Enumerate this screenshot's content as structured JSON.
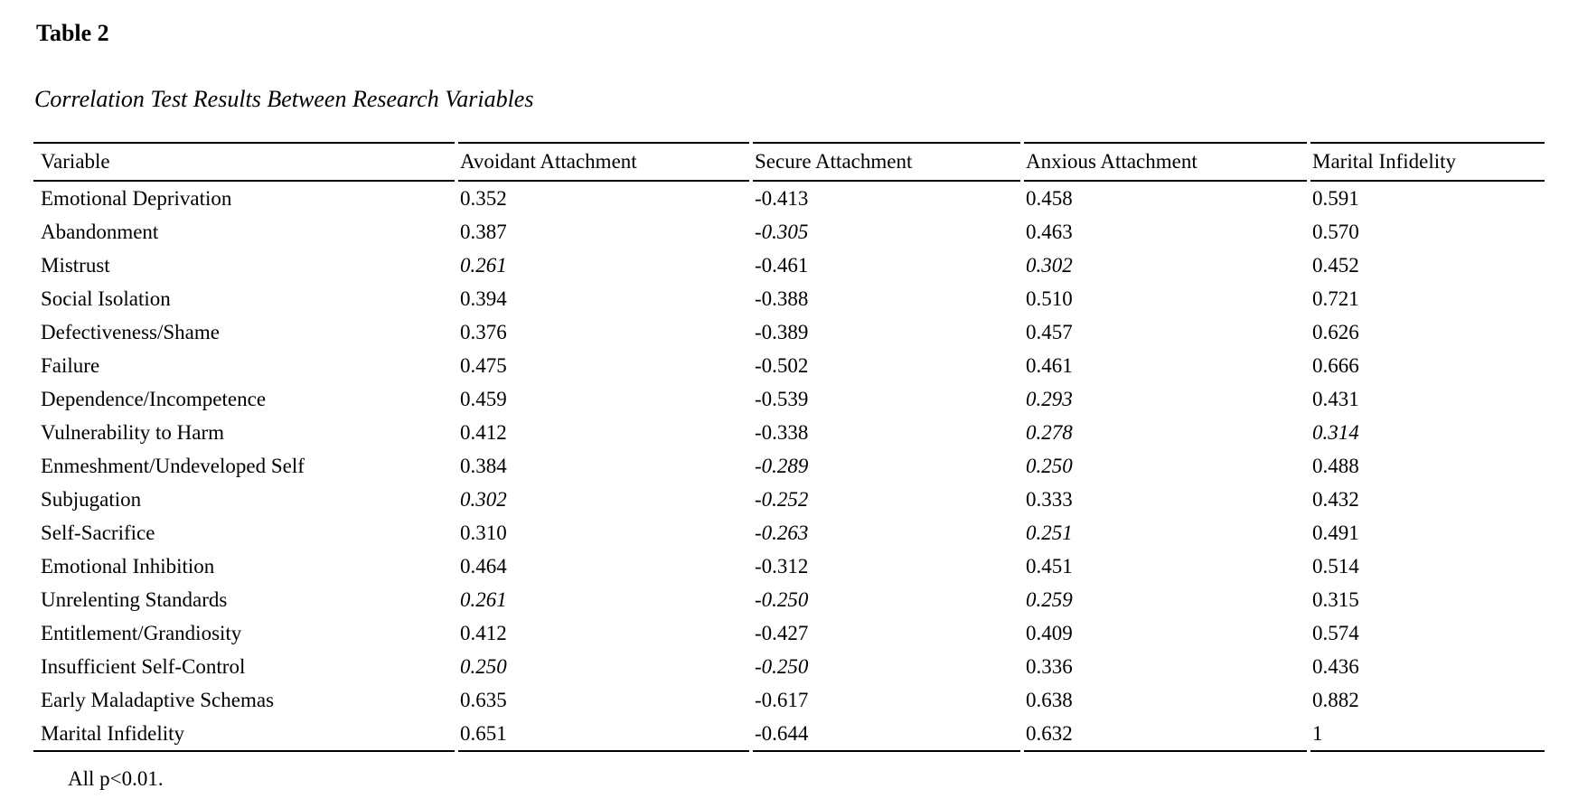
{
  "title": "Table 2",
  "caption": "Correlation Test Results Between Research Variables",
  "footnote": "All p<0.01.",
  "colors": {
    "text": "#000000",
    "background": "#ffffff",
    "rule": "#000000"
  },
  "table": {
    "columns": [
      "Variable",
      "Avoidant Attachment",
      "Secure Attachment",
      "Anxious Attachment",
      "Marital Infidelity"
    ],
    "rows": [
      {
        "variable": "Emotional Deprivation",
        "values": [
          "0.352",
          "-0.413",
          "0.458",
          "0.591"
        ],
        "italic": [
          false,
          false,
          false,
          false
        ]
      },
      {
        "variable": "Abandonment",
        "values": [
          "0.387",
          "-0.305",
          "0.463",
          "0.570"
        ],
        "italic": [
          false,
          true,
          false,
          false
        ]
      },
      {
        "variable": "Mistrust",
        "values": [
          "0.261",
          "-0.461",
          "0.302",
          "0.452"
        ],
        "italic": [
          true,
          false,
          true,
          false
        ]
      },
      {
        "variable": "Social Isolation",
        "values": [
          "0.394",
          "-0.388",
          "0.510",
          "0.721"
        ],
        "italic": [
          false,
          false,
          false,
          false
        ]
      },
      {
        "variable": "Defectiveness/Shame",
        "values": [
          "0.376",
          "-0.389",
          "0.457",
          "0.626"
        ],
        "italic": [
          false,
          false,
          false,
          false
        ]
      },
      {
        "variable": "Failure",
        "values": [
          "0.475",
          "-0.502",
          "0.461",
          "0.666"
        ],
        "italic": [
          false,
          false,
          false,
          false
        ]
      },
      {
        "variable": "Dependence/Incompetence",
        "values": [
          "0.459",
          "-0.539",
          "0.293",
          "0.431"
        ],
        "italic": [
          false,
          false,
          true,
          false
        ]
      },
      {
        "variable": "Vulnerability to Harm",
        "values": [
          "0.412",
          "-0.338",
          "0.278",
          "0.314"
        ],
        "italic": [
          false,
          false,
          true,
          true
        ]
      },
      {
        "variable": "Enmeshment/Undeveloped Self",
        "values": [
          "0.384",
          "-0.289",
          "0.250",
          "0.488"
        ],
        "italic": [
          false,
          true,
          true,
          false
        ]
      },
      {
        "variable": "Subjugation",
        "values": [
          "0.302",
          "-0.252",
          "0.333",
          "0.432"
        ],
        "italic": [
          true,
          true,
          false,
          false
        ]
      },
      {
        "variable": "Self-Sacrifice",
        "values": [
          "0.310",
          "-0.263",
          "0.251",
          "0.491"
        ],
        "italic": [
          false,
          true,
          true,
          false
        ]
      },
      {
        "variable": "Emotional Inhibition",
        "values": [
          "0.464",
          "-0.312",
          "0.451",
          "0.514"
        ],
        "italic": [
          false,
          false,
          false,
          false
        ]
      },
      {
        "variable": "Unrelenting Standards",
        "values": [
          "0.261",
          "-0.250",
          "0.259",
          "0.315"
        ],
        "italic": [
          true,
          true,
          true,
          false
        ]
      },
      {
        "variable": "Entitlement/Grandiosity",
        "values": [
          "0.412",
          "-0.427",
          "0.409",
          "0.574"
        ],
        "italic": [
          false,
          false,
          false,
          false
        ]
      },
      {
        "variable": "Insufficient Self-Control",
        "values": [
          "0.250",
          "-0.250",
          "0.336",
          "0.436"
        ],
        "italic": [
          true,
          true,
          false,
          false
        ]
      },
      {
        "variable": "Early Maladaptive Schemas",
        "values": [
          "0.635",
          "-0.617",
          "0.638",
          "0.882"
        ],
        "italic": [
          false,
          false,
          false,
          false
        ]
      },
      {
        "variable": "Marital Infidelity",
        "values": [
          "0.651",
          "-0.644",
          "0.632",
          "1"
        ],
        "italic": [
          false,
          false,
          false,
          false
        ]
      }
    ]
  }
}
